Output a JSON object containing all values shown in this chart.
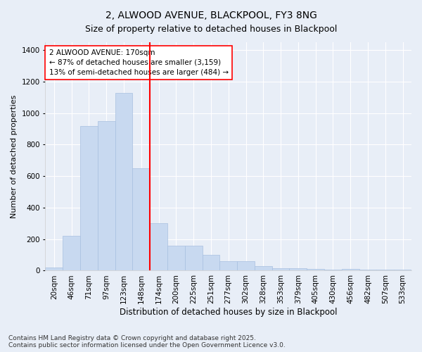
{
  "title": "2, ALWOOD AVENUE, BLACKPOOL, FY3 8NG",
  "subtitle": "Size of property relative to detached houses in Blackpool",
  "xlabel": "Distribution of detached houses by size in Blackpool",
  "ylabel": "Number of detached properties",
  "footnote": "Contains HM Land Registry data © Crown copyright and database right 2025.\nContains public sector information licensed under the Open Government Licence v3.0.",
  "categories": [
    "20sqm",
    "46sqm",
    "71sqm",
    "97sqm",
    "123sqm",
    "148sqm",
    "174sqm",
    "200sqm",
    "225sqm",
    "251sqm",
    "277sqm",
    "302sqm",
    "328sqm",
    "353sqm",
    "379sqm",
    "405sqm",
    "430sqm",
    "456sqm",
    "482sqm",
    "507sqm",
    "533sqm"
  ],
  "values": [
    20,
    220,
    920,
    950,
    1130,
    650,
    300,
    160,
    160,
    100,
    60,
    60,
    30,
    15,
    15,
    10,
    5,
    10,
    5,
    5,
    5
  ],
  "bar_color": "#c8d9f0",
  "bar_edge_color": "#a8c0e0",
  "vline_x": 6.0,
  "vline_color": "red",
  "annotation_box_text": "2 ALWOOD AVENUE: 170sqm\n← 87% of detached houses are smaller (3,159)\n13% of semi-detached houses are larger (484) →",
  "ylim": [
    0,
    1450
  ],
  "yticks": [
    0,
    200,
    400,
    600,
    800,
    1000,
    1200,
    1400
  ],
  "bg_color": "#e8eef7",
  "plot_bg_color": "#e8eef7",
  "grid_color": "#ffffff",
  "title_fontsize": 10,
  "subtitle_fontsize": 9,
  "xlabel_fontsize": 8.5,
  "ylabel_fontsize": 8,
  "tick_fontsize": 7.5,
  "annotation_fontsize": 7.5,
  "footnote_fontsize": 6.5
}
